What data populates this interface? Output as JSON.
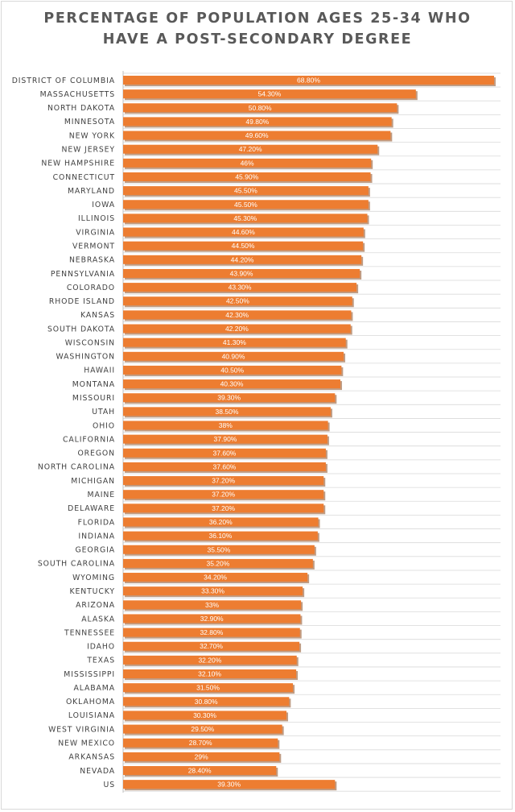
{
  "colors": {
    "bar": "#ed7d31",
    "bar_shadow": "#8c4a1e",
    "grid": "#d9d9d9",
    "axis": "#bfbfbf",
    "text": "#404040"
  },
  "chart_data": {
    "type": "bar",
    "orientation": "horizontal",
    "title": [
      "PERCENTAGE OF POPULATION AGES 25-34 WHO",
      "HAVE A POST-SECONDARY DEGREE"
    ],
    "xlabel": "",
    "ylabel": "",
    "xlim": [
      0,
      70
    ],
    "grid": true,
    "legend": "none",
    "categories": [
      "DISTRICT OF COLUMBIA",
      "MASSACHUSETTS",
      "NORTH DAKOTA",
      "MINNESOTA",
      "NEW YORK",
      "NEW JERSEY",
      "NEW HAMPSHIRE",
      "CONNECTICUT",
      "MARYLAND",
      "IOWA",
      "ILLINOIS",
      "VIRGINIA",
      "VERMONT",
      "NEBRASKA",
      "PENNSYLVANIA",
      "COLORADO",
      "RHODE ISLAND",
      "KANSAS",
      "SOUTH DAKOTA",
      "WISCONSIN",
      "WASHINGTON",
      "HAWAII",
      "MONTANA",
      "MISSOURI",
      "UTAH",
      "OHIO",
      "CALIFORNIA",
      "OREGON",
      "NORTH CAROLINA",
      "MICHIGAN",
      "MAINE",
      "DELAWARE",
      "FLORIDA",
      "INDIANA",
      "GEORGIA",
      "SOUTH CAROLINA",
      "WYOMING",
      "KENTUCKY",
      "ARIZONA",
      "ALASKA",
      "TENNESSEE",
      "IDAHO",
      "TEXAS",
      "MISSISSIPPI",
      "ALABAMA",
      "OKLAHOMA",
      "LOUISIANA",
      "WEST VIRGINIA",
      "NEW MEXICO",
      "ARKANSAS",
      "NEVADA",
      "US"
    ],
    "values": [
      68.8,
      54.3,
      50.8,
      49.8,
      49.6,
      47.2,
      46,
      45.9,
      45.5,
      45.5,
      45.3,
      44.6,
      44.5,
      44.2,
      43.9,
      43.3,
      42.5,
      42.3,
      42.2,
      41.3,
      40.9,
      40.5,
      40.3,
      39.3,
      38.5,
      38,
      37.9,
      37.6,
      37.6,
      37.2,
      37.2,
      37.2,
      36.2,
      36.1,
      35.5,
      35.2,
      34.2,
      33.3,
      33,
      32.9,
      32.8,
      32.7,
      32.2,
      32.1,
      31.5,
      30.8,
      30.3,
      29.5,
      28.7,
      29,
      28.4,
      39.3
    ],
    "data_labels": [
      "68.80%",
      "54.30%",
      "50.80%",
      "49.80%",
      "49.60%",
      "47.20%",
      "46%",
      "45.90%",
      "45.50%",
      "45.50%",
      "45.30%",
      "44.60%",
      "44.50%",
      "44.20%",
      "43.90%",
      "43.30%",
      "42.50%",
      "42.30%",
      "42.20%",
      "41.30%",
      "40.90%",
      "40.50%",
      "40.30%",
      "39.30%",
      "38.50%",
      "38%",
      "37.90%",
      "37.60%",
      "37.60%",
      "37.20%",
      "37.20%",
      "37.20%",
      "36.20%",
      "36.10%",
      "35.50%",
      "35.20%",
      "34.20%",
      "33.30%",
      "33%",
      "32.90%",
      "32.80%",
      "32.70%",
      "32.20%",
      "32.10%",
      "31.50%",
      "30.80%",
      "30.30%",
      "29.50%",
      "28.70%",
      "29%",
      "28.40%",
      "39.30%"
    ]
  }
}
